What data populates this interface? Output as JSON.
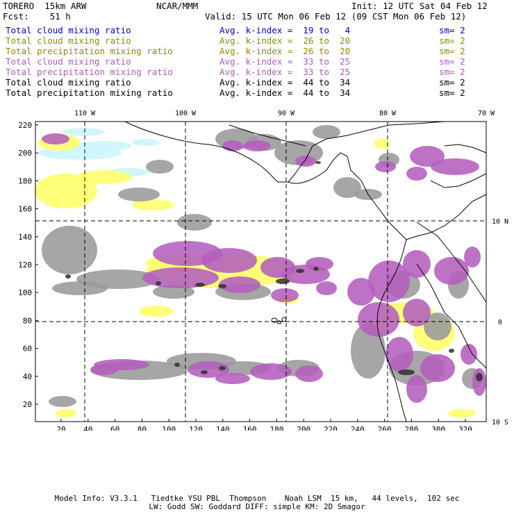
{
  "header": {
    "model": "TORERO  15km ARW",
    "forecast": "Fcst:    51 h",
    "org": "NCAR/MMM",
    "init": "Init: 12 UTC Sat 04 Feb 12",
    "valid": "Valid: 15 UTC Mon 06 Feb 12 (09 CST Mon 06 Feb 12)"
  },
  "legend": [
    {
      "label": "Total cloud mixing ratio",
      "index": "Avg. k-index =  19 to   4",
      "sm": "sm= 2",
      "color": "#0000cc"
    },
    {
      "label": "Total cloud mixing ratio",
      "index": "Avg. k-index =  26 to  20",
      "sm": "sm= 2",
      "color": "#8c8c00"
    },
    {
      "label": "Total precipitation mixing ratio",
      "index": "Avg. k-index =  26 to  20",
      "sm": "sm= 2",
      "color": "#8c8c00"
    },
    {
      "label": "Total cloud mixing ratio",
      "index": "Avg. k-index =  33 to  25",
      "sm": "sm= 2",
      "color": "#b05ab8"
    },
    {
      "label": "Total precipitation mixing ratio",
      "index": "Avg. k-index =  33 to  25",
      "sm": "sm= 2",
      "color": "#b05ab8"
    },
    {
      "label": "Total cloud mixing ratio",
      "index": "Avg. k-index =  44 to  34",
      "sm": "sm= 2",
      "color": "#000000"
    },
    {
      "label": "Total precipitation mixing ratio",
      "index": "Avg. k-index =  44 to  34",
      "sm": "sm= 2",
      "color": "#000000"
    }
  ],
  "map": {
    "lon_labels": [
      "110 W",
      "100 W",
      "90 W",
      "80 W",
      "70 W"
    ],
    "lat_labels": [
      "10 N",
      "0",
      "10 S"
    ],
    "y_ticks": [
      "220",
      "200",
      "180",
      "160",
      "140",
      "120",
      "100",
      "80",
      "60",
      "40",
      "20"
    ],
    "x_ticks": [
      "20",
      "40",
      "60",
      "80",
      "100",
      "120",
      "140",
      "160",
      "180",
      "200",
      "220",
      "240",
      "260",
      "280",
      "300",
      "320"
    ],
    "colors": {
      "cyan": "#ccf5ff",
      "yellow": "#ffff66",
      "purple": "#b45fbe",
      "gray": "#9a9a9a",
      "dark": "#333333"
    }
  },
  "footer": {
    "line1": "Model Info: V3.3.1   Tiedtke YSU PBL  Thompson    Noah LSM  15 km,   44 levels,  102 sec",
    "line2": "LW: Godd SW: Goddard DIFF: simple KM: 2D Smagor"
  }
}
